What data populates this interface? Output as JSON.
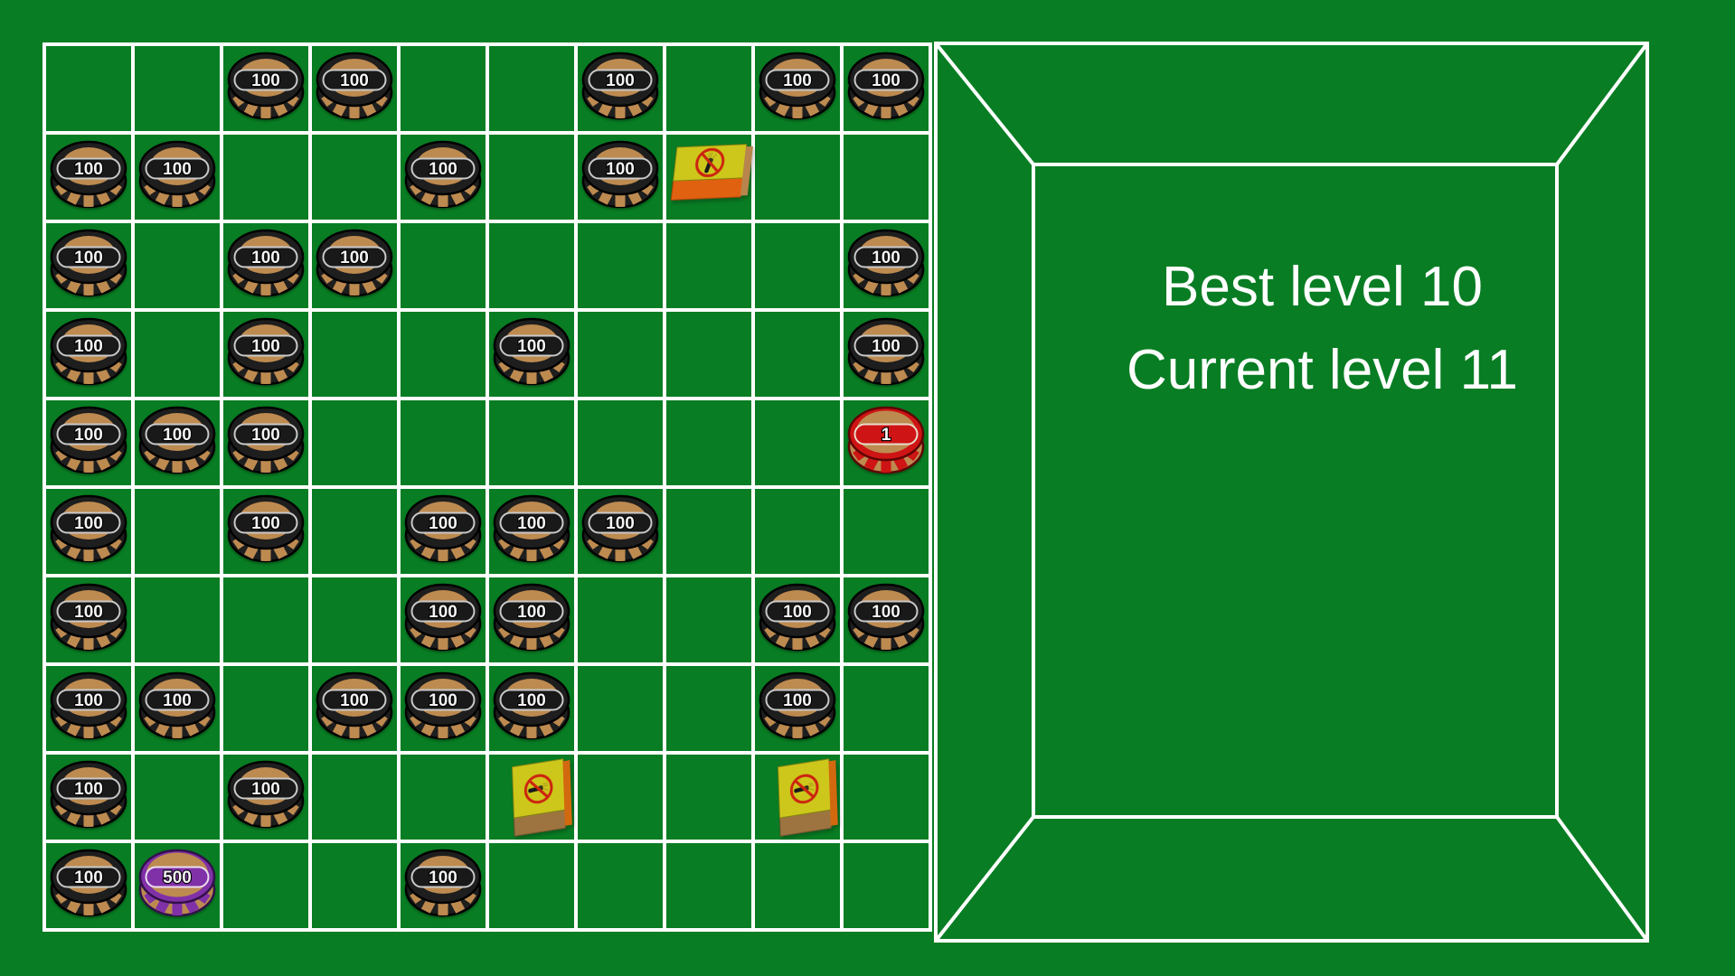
{
  "colors": {
    "background": "#087D23",
    "grid_line": "#FFFFFF",
    "panel_line": "#FFFFFF",
    "panel_text": "#FFFFFF"
  },
  "panel": {
    "best_level": "Best level 10",
    "current_level": "Current level 11"
  },
  "board": {
    "rows": 10,
    "cols": 10,
    "items": [
      {
        "row": 1,
        "col": 3,
        "type": "chip",
        "variant": "black",
        "value": "100"
      },
      {
        "row": 1,
        "col": 4,
        "type": "chip",
        "variant": "black",
        "value": "100"
      },
      {
        "row": 1,
        "col": 7,
        "type": "chip",
        "variant": "black",
        "value": "100"
      },
      {
        "row": 1,
        "col": 9,
        "type": "chip",
        "variant": "black",
        "value": "100"
      },
      {
        "row": 1,
        "col": 10,
        "type": "chip",
        "variant": "black",
        "value": "100"
      },
      {
        "row": 2,
        "col": 1,
        "type": "chip",
        "variant": "black",
        "value": "100"
      },
      {
        "row": 2,
        "col": 2,
        "type": "chip",
        "variant": "black",
        "value": "100"
      },
      {
        "row": 2,
        "col": 5,
        "type": "chip",
        "variant": "black",
        "value": "100"
      },
      {
        "row": 2,
        "col": 7,
        "type": "chip",
        "variant": "black",
        "value": "100"
      },
      {
        "row": 2,
        "col": 8,
        "type": "matchbox",
        "variant": "orange"
      },
      {
        "row": 3,
        "col": 1,
        "type": "chip",
        "variant": "black",
        "value": "100"
      },
      {
        "row": 3,
        "col": 3,
        "type": "chip",
        "variant": "black",
        "value": "100"
      },
      {
        "row": 3,
        "col": 4,
        "type": "chip",
        "variant": "black",
        "value": "100"
      },
      {
        "row": 3,
        "col": 10,
        "type": "chip",
        "variant": "black",
        "value": "100"
      },
      {
        "row": 4,
        "col": 1,
        "type": "chip",
        "variant": "black",
        "value": "100"
      },
      {
        "row": 4,
        "col": 3,
        "type": "chip",
        "variant": "black",
        "value": "100"
      },
      {
        "row": 4,
        "col": 6,
        "type": "chip",
        "variant": "black",
        "value": "100"
      },
      {
        "row": 4,
        "col": 10,
        "type": "chip",
        "variant": "black",
        "value": "100"
      },
      {
        "row": 5,
        "col": 1,
        "type": "chip",
        "variant": "black",
        "value": "100"
      },
      {
        "row": 5,
        "col": 2,
        "type": "chip",
        "variant": "black",
        "value": "100"
      },
      {
        "row": 5,
        "col": 3,
        "type": "chip",
        "variant": "black",
        "value": "100"
      },
      {
        "row": 5,
        "col": 10,
        "type": "chip",
        "variant": "red",
        "value": "1"
      },
      {
        "row": 6,
        "col": 1,
        "type": "chip",
        "variant": "black",
        "value": "100"
      },
      {
        "row": 6,
        "col": 3,
        "type": "chip",
        "variant": "black",
        "value": "100"
      },
      {
        "row": 6,
        "col": 5,
        "type": "chip",
        "variant": "black",
        "value": "100"
      },
      {
        "row": 6,
        "col": 6,
        "type": "chip",
        "variant": "black",
        "value": "100"
      },
      {
        "row": 6,
        "col": 7,
        "type": "chip",
        "variant": "black",
        "value": "100"
      },
      {
        "row": 7,
        "col": 1,
        "type": "chip",
        "variant": "black",
        "value": "100"
      },
      {
        "row": 7,
        "col": 5,
        "type": "chip",
        "variant": "black",
        "value": "100"
      },
      {
        "row": 7,
        "col": 6,
        "type": "chip",
        "variant": "black",
        "value": "100"
      },
      {
        "row": 7,
        "col": 9,
        "type": "chip",
        "variant": "black",
        "value": "100"
      },
      {
        "row": 7,
        "col": 10,
        "type": "chip",
        "variant": "black",
        "value": "100"
      },
      {
        "row": 8,
        "col": 1,
        "type": "chip",
        "variant": "black",
        "value": "100"
      },
      {
        "row": 8,
        "col": 2,
        "type": "chip",
        "variant": "black",
        "value": "100"
      },
      {
        "row": 8,
        "col": 4,
        "type": "chip",
        "variant": "black",
        "value": "100"
      },
      {
        "row": 8,
        "col": 5,
        "type": "chip",
        "variant": "black",
        "value": "100"
      },
      {
        "row": 8,
        "col": 6,
        "type": "chip",
        "variant": "black",
        "value": "100"
      },
      {
        "row": 8,
        "col": 9,
        "type": "chip",
        "variant": "black",
        "value": "100"
      },
      {
        "row": 9,
        "col": 1,
        "type": "chip",
        "variant": "black",
        "value": "100"
      },
      {
        "row": 9,
        "col": 3,
        "type": "chip",
        "variant": "black",
        "value": "100"
      },
      {
        "row": 9,
        "col": 6,
        "type": "matchbox",
        "variant": "brown"
      },
      {
        "row": 9,
        "col": 9,
        "type": "matchbox",
        "variant": "brown"
      },
      {
        "row": 10,
        "col": 1,
        "type": "chip",
        "variant": "black",
        "value": "100"
      },
      {
        "row": 10,
        "col": 2,
        "type": "chip",
        "variant": "purple",
        "value": "500"
      },
      {
        "row": 10,
        "col": 5,
        "type": "chip",
        "variant": "black",
        "value": "100"
      }
    ]
  },
  "chip_styles": {
    "black": {
      "body": "#1E1E1E",
      "outline": "#000000",
      "inner": "#BD8A50",
      "band": "#191919",
      "band_outline": "#C9C9C9",
      "edge": "#1E1E1E",
      "edge_stripe": "#BD8A50",
      "text_color": "#F4F4F4"
    },
    "red": {
      "body": "#CE1414",
      "outline": "#5E0404",
      "inner": "#BD8A50",
      "band": "#CE1414",
      "band_outline": "#E9DCCB",
      "edge": "#BD8A50",
      "edge_stripe": "#CE1414",
      "text_color": "#FFFFFF"
    },
    "purple": {
      "body": "#8031A7",
      "outline": "#31104A",
      "inner": "#BD8A50",
      "band": "#8031A7",
      "band_outline": "#EBDDF2",
      "edge": "#BD8A50",
      "edge_stripe": "#8031A7",
      "text_color": "#F6EFFA"
    }
  },
  "matchbox_styles": {
    "orange": {
      "top": "#CDC71B",
      "front": "#E06110",
      "side": "#B8854C",
      "ring": "#CC2410",
      "match": "#1A1A1A",
      "flame": "#B8A81C",
      "icon_rotate": -75
    },
    "brown": {
      "top": "#CDC71B",
      "front": "#9D7440",
      "side": "#D2690F",
      "ring": "#CC2410",
      "match": "#1A1A1A",
      "flame": "#B8A81C",
      "icon_rotate": -5
    }
  }
}
